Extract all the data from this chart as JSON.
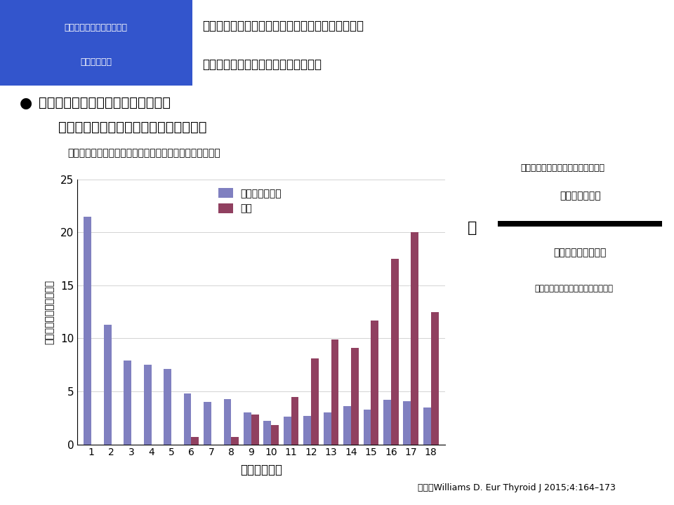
{
  "ages": [
    1,
    2,
    3,
    4,
    5,
    6,
    7,
    8,
    9,
    10,
    11,
    12,
    13,
    14,
    15,
    16,
    17,
    18
  ],
  "chernobyl": [
    21.5,
    11.3,
    7.9,
    7.5,
    7.1,
    4.8,
    4.0,
    4.3,
    3.0,
    2.2,
    2.6,
    2.7,
    3.0,
    3.6,
    3.3,
    4.2,
    4.1,
    3.5
  ],
  "fukushima": [
    0,
    0,
    0,
    0,
    0,
    0.7,
    0,
    0.7,
    2.8,
    1.8,
    4.5,
    8.1,
    9.9,
    9.1,
    11.7,
    17.5,
    20.0,
    12.5
  ],
  "chernobyl_color": "#8080c0",
  "fukushima_color": "#904060",
  "header_box_color": "#3355cc",
  "header_bg_color": "#c8dff0",
  "ylim": [
    0,
    25
  ],
  "yticks": [
    0,
    5,
    10,
    15,
    20,
    25
  ]
}
